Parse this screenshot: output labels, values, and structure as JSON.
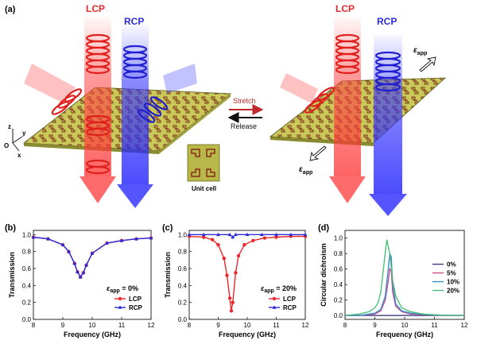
{
  "panel_labels": {
    "a": "(a)",
    "b": "(b)",
    "c": "(c)",
    "d": "(d)"
  },
  "illustration": {
    "beam_left_red": "LCP",
    "beam_left_blue": "RCP",
    "beam_right_red": "LCP",
    "beam_right_blue": "RCP",
    "arrow_top_label": "Stretch",
    "arrow_bottom_label": "Release",
    "unit_cell_label": "Unit cell",
    "strain_symbol": "ε",
    "strain_subscript": "app",
    "axis_z": "z",
    "axis_y": "y",
    "axis_x": "x",
    "axis_origin": "O"
  },
  "colors": {
    "lcp": "#e8282c",
    "rcp": "#2c2cd8",
    "metasurface": "#c9c95a",
    "pattern": "#8a2a1a",
    "stretch_arrow": "#c0282c",
    "release_arrow": "#111111"
  },
  "chart_data": [
    {
      "id": "b",
      "type": "line",
      "xlabel": "Frequency (GHz)",
      "ylabel": "Transmission",
      "xlim": [
        8,
        12
      ],
      "ylim": [
        0,
        1.05
      ],
      "xticks": [
        "8",
        "9",
        "10",
        "11",
        "12"
      ],
      "yticks": [
        "0.0",
        "0.2",
        "0.4",
        "0.6",
        "0.8",
        "1.0"
      ],
      "annotation_symbol": "ε",
      "annotation_subscript": "app",
      "annotation_value": " = 0%",
      "legend": [
        "LCP",
        "RCP"
      ],
      "series": [
        {
          "name": "LCP",
          "color": "#e8282c",
          "marker": "circle",
          "x": [
            8.0,
            8.5,
            9.0,
            9.2,
            9.4,
            9.5,
            9.6,
            9.7,
            9.8,
            10.0,
            10.5,
            11.0,
            11.5,
            12.0
          ],
          "y": [
            0.97,
            0.95,
            0.88,
            0.8,
            0.66,
            0.56,
            0.5,
            0.55,
            0.64,
            0.78,
            0.9,
            0.93,
            0.95,
            0.96
          ]
        },
        {
          "name": "RCP",
          "color": "#2c2cd8",
          "marker": "triangle",
          "x": [
            8.0,
            8.5,
            9.0,
            9.2,
            9.4,
            9.5,
            9.6,
            9.7,
            9.8,
            10.0,
            10.5,
            11.0,
            11.5,
            12.0
          ],
          "y": [
            0.97,
            0.95,
            0.88,
            0.8,
            0.66,
            0.56,
            0.5,
            0.55,
            0.64,
            0.78,
            0.9,
            0.93,
            0.95,
            0.96
          ]
        }
      ]
    },
    {
      "id": "c",
      "type": "line",
      "xlabel": "Frequency (GHz)",
      "ylabel": "Transmission",
      "xlim": [
        8,
        12
      ],
      "ylim": [
        0,
        1.05
      ],
      "xticks": [
        "8",
        "9",
        "10",
        "11",
        "12"
      ],
      "yticks": [
        "0.0",
        "0.2",
        "0.4",
        "0.6",
        "0.8",
        "1.0"
      ],
      "annotation_symbol": "ε",
      "annotation_subscript": "app",
      "annotation_value": " = 20%",
      "legend": [
        "LCP",
        "RCP"
      ],
      "series": [
        {
          "name": "LCP",
          "color": "#e8282c",
          "marker": "circle",
          "x": [
            8.0,
            8.5,
            8.8,
            9.0,
            9.2,
            9.3,
            9.4,
            9.45,
            9.5,
            9.6,
            9.7,
            9.9,
            10.2,
            10.6,
            11.0,
            11.5,
            12.0
          ],
          "y": [
            0.98,
            0.97,
            0.94,
            0.88,
            0.72,
            0.52,
            0.25,
            0.1,
            0.2,
            0.55,
            0.75,
            0.88,
            0.93,
            0.96,
            0.97,
            0.98,
            0.98
          ]
        },
        {
          "name": "RCP",
          "color": "#2c2cd8",
          "marker": "triangle",
          "x": [
            8.0,
            8.5,
            9.0,
            9.4,
            9.5,
            9.6,
            10.0,
            10.5,
            11.0,
            11.5,
            12.0
          ],
          "y": [
            1.0,
            1.0,
            1.0,
            1.0,
            0.97,
            1.0,
            1.0,
            1.0,
            1.0,
            1.0,
            1.0
          ]
        }
      ]
    },
    {
      "id": "d",
      "type": "line",
      "xlabel": "Frequency (GHz)",
      "ylabel": "Circular dichroism",
      "xlim": [
        8,
        12
      ],
      "ylim": [
        -0.05,
        1.1
      ],
      "xticks": [
        "8",
        "9",
        "10",
        "11",
        "12"
      ],
      "yticks": [
        "0.0",
        "0.2",
        "0.4",
        "0.6",
        "0.8",
        "1.0"
      ],
      "legend": [
        "0%",
        "5%",
        "10%",
        "20%"
      ],
      "series": [
        {
          "name": "0%",
          "color": "#3a3a7a",
          "x": [
            8.0,
            9.0,
            10.0,
            11.0,
            12.0
          ],
          "y": [
            0.0,
            0.0,
            0.0,
            0.0,
            0.0
          ]
        },
        {
          "name": "5%",
          "color": "#d04a8a",
          "x": [
            8.0,
            8.5,
            9.0,
            9.2,
            9.35,
            9.45,
            9.5,
            9.55,
            9.6,
            9.7,
            9.9,
            10.2,
            10.8,
            11.5,
            12.0
          ],
          "y": [
            0.0,
            0.0,
            0.02,
            0.06,
            0.2,
            0.45,
            0.6,
            0.58,
            0.3,
            0.12,
            0.05,
            0.02,
            0.01,
            0.0,
            0.0
          ]
        },
        {
          "name": "10%",
          "color": "#3a8fd0",
          "x": [
            8.0,
            8.5,
            9.0,
            9.2,
            9.35,
            9.45,
            9.5,
            9.55,
            9.6,
            9.7,
            9.9,
            10.2,
            10.8,
            11.5,
            12.0
          ],
          "y": [
            0.0,
            0.0,
            0.03,
            0.08,
            0.25,
            0.6,
            0.8,
            0.76,
            0.4,
            0.15,
            0.06,
            0.03,
            0.01,
            0.0,
            0.0
          ]
        },
        {
          "name": "20%",
          "color": "#4cc07a",
          "x": [
            8.0,
            8.5,
            8.8,
            9.0,
            9.1,
            9.2,
            9.3,
            9.4,
            9.5,
            9.6,
            9.7,
            9.9,
            10.2,
            10.6,
            11.0,
            11.5,
            12.0
          ],
          "y": [
            0.0,
            0.02,
            0.05,
            0.1,
            0.16,
            0.3,
            0.65,
            0.98,
            0.8,
            0.45,
            0.25,
            0.1,
            0.05,
            0.02,
            0.01,
            0.0,
            0.0
          ]
        }
      ]
    }
  ]
}
